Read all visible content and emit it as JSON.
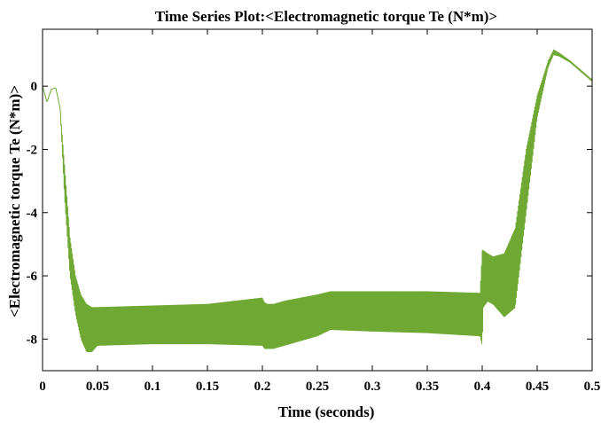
{
  "chart_data": {
    "type": "line",
    "title": "Time Series Plot:<Electromagnetic torque Te (N*m)>",
    "xlabel": "Time (seconds)",
    "ylabel": "<Electromagnetic torque Te (N*m)>",
    "xlim": [
      0,
      0.5
    ],
    "ylim": [
      -9,
      1.8
    ],
    "xticks": [
      0,
      0.05,
      0.1,
      0.15,
      0.2,
      0.25,
      0.3,
      0.35,
      0.4,
      0.45,
      0.5
    ],
    "xtick_labels": [
      "0",
      "0.05",
      "0.1",
      "0.15",
      "0.2",
      "0.25",
      "0.3",
      "0.35",
      "0.4",
      "0.45",
      "0.5"
    ],
    "yticks": [
      0,
      -2,
      -4,
      -6,
      -8
    ],
    "ytick_labels": [
      "0",
      "-2",
      "-4",
      "-6",
      "-8"
    ],
    "grid": false,
    "series": [
      {
        "color": "#6fa832",
        "envelope_upper": {
          "x": [
            0,
            0.004,
            0.008,
            0.012,
            0.016,
            0.02,
            0.025,
            0.03,
            0.035,
            0.04,
            0.045,
            0.05,
            0.1,
            0.15,
            0.2,
            0.202,
            0.205,
            0.21,
            0.22,
            0.25,
            0.262,
            0.3,
            0.35,
            0.398,
            0.4,
            0.401,
            0.405,
            0.41,
            0.42,
            0.43,
            0.44,
            0.45,
            0.46,
            0.465,
            0.47,
            0.48,
            0.49,
            0.5
          ],
          "y": [
            0,
            -0.5,
            -0.1,
            -0.05,
            -0.7,
            -2.5,
            -4.8,
            -6.0,
            -6.6,
            -6.9,
            -7.0,
            -7.0,
            -6.95,
            -6.9,
            -6.7,
            -6.85,
            -6.9,
            -6.9,
            -6.8,
            -6.6,
            -6.5,
            -6.5,
            -6.5,
            -6.55,
            -5.2,
            -5.2,
            -5.3,
            -5.4,
            -5.3,
            -4.5,
            -2.0,
            -0.3,
            0.8,
            1.15,
            1.05,
            0.8,
            0.5,
            0.2
          ]
        },
        "envelope_lower": {
          "x": [
            0,
            0.004,
            0.008,
            0.012,
            0.016,
            0.02,
            0.025,
            0.03,
            0.035,
            0.04,
            0.045,
            0.05,
            0.1,
            0.15,
            0.2,
            0.202,
            0.205,
            0.21,
            0.22,
            0.25,
            0.262,
            0.3,
            0.35,
            0.398,
            0.4,
            0.401,
            0.405,
            0.41,
            0.42,
            0.43,
            0.44,
            0.45,
            0.46,
            0.465,
            0.47,
            0.48,
            0.49,
            0.5
          ],
          "y": [
            0,
            -0.5,
            -0.1,
            -0.05,
            -0.7,
            -3.5,
            -6.0,
            -7.2,
            -8.0,
            -8.4,
            -8.4,
            -8.2,
            -8.15,
            -8.15,
            -8.2,
            -8.3,
            -8.3,
            -8.3,
            -8.2,
            -7.9,
            -7.7,
            -7.75,
            -7.8,
            -7.9,
            -8.2,
            -7.0,
            -6.8,
            -6.9,
            -7.3,
            -7.0,
            -4.0,
            -1.0,
            0.6,
            1.0,
            0.95,
            0.75,
            0.45,
            0.15
          ]
        }
      }
    ]
  }
}
